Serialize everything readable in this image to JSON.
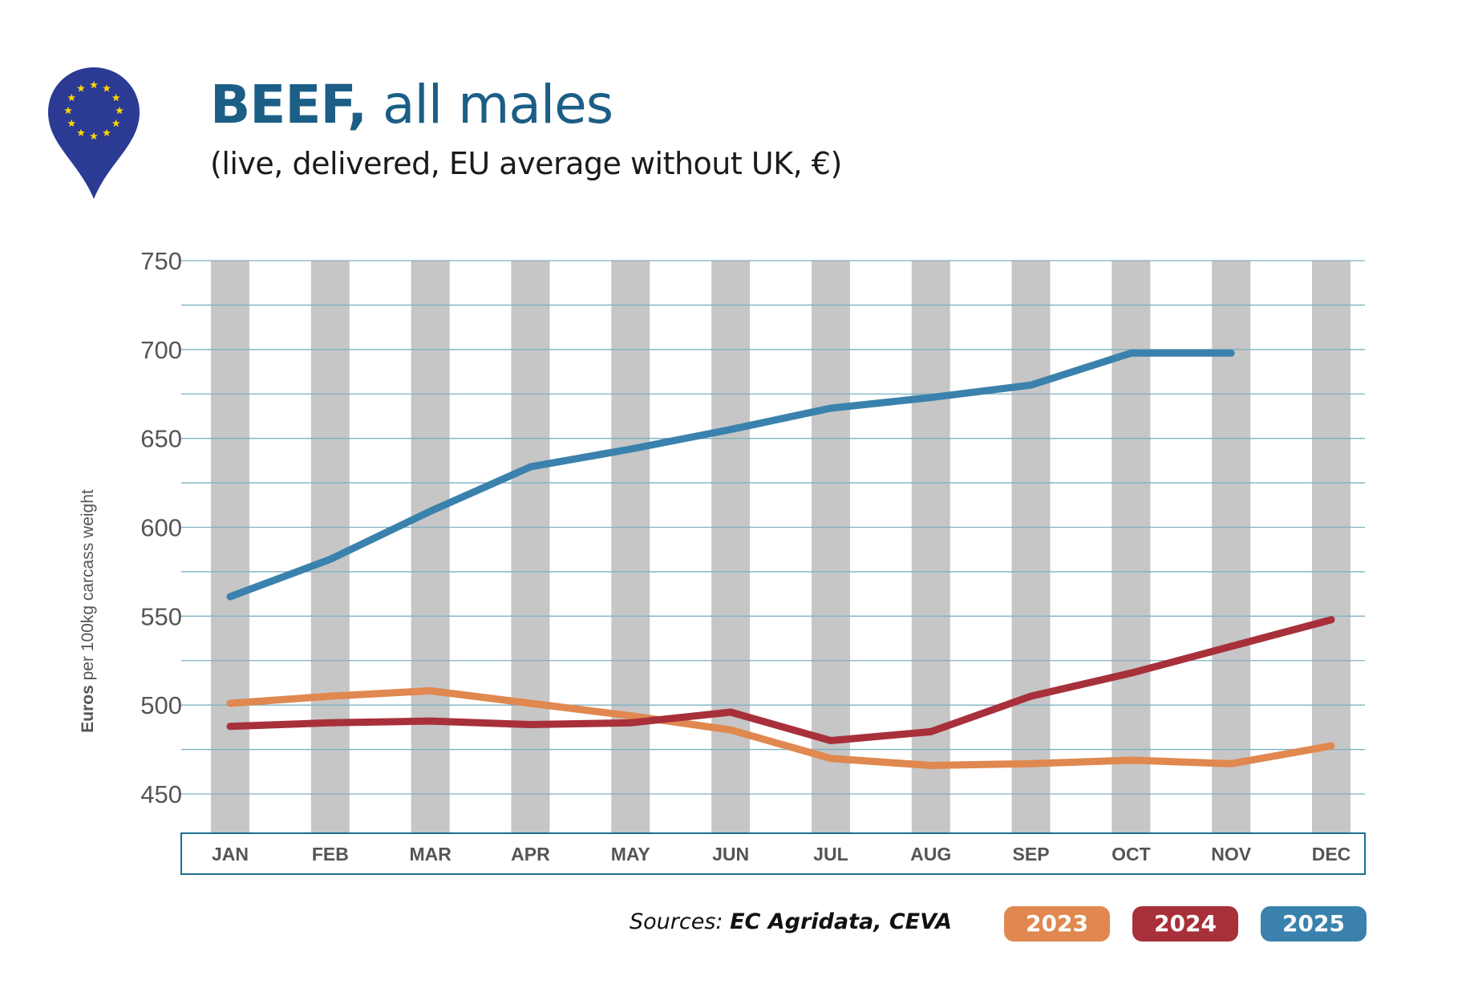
{
  "header": {
    "title_bold": "BEEF,",
    "title_rest": " all males",
    "subtitle": "(live, delivered, EU average without UK, €)"
  },
  "logo": {
    "icon": "eu-flag-map-pin-icon",
    "color": "#2b3a93",
    "star_color": "#ffd600"
  },
  "footer": {
    "sources_label": "Sources: ",
    "sources_value": "EC Agridata, CEVA"
  },
  "colors": {
    "title": "#1b5e86",
    "grid": "#7fb0c2",
    "month_band": "#c6c6c6",
    "axis_frame": "#1b6f90",
    "tick_text": "#555555"
  },
  "chart_data": {
    "type": "line",
    "title": "BEEF, all males",
    "subtitle": "(live, delivered, EU average without UK, €)",
    "ylabel_bold": "Euros",
    "ylabel_rest": " per 100kg carcass weight",
    "xlabel": "",
    "categories": [
      "JAN",
      "FEB",
      "MAR",
      "APR",
      "MAY",
      "JUN",
      "JUL",
      "AUG",
      "SEP",
      "OCT",
      "NOV",
      "DEC"
    ],
    "ylim": [
      450,
      750
    ],
    "yticks": [
      450,
      500,
      550,
      600,
      650,
      700,
      750
    ],
    "minor_gridlines": [
      475,
      525,
      575,
      625,
      675,
      725
    ],
    "grid": true,
    "legend": "bottom-right",
    "series": [
      {
        "name": "2023",
        "color": "#e0884f",
        "values": [
          501,
          505,
          508,
          501,
          494,
          486,
          470,
          466,
          467,
          469,
          467,
          477
        ]
      },
      {
        "name": "2024",
        "color": "#a8303a",
        "values": [
          488,
          490,
          491,
          489,
          490,
          496,
          480,
          485,
          505,
          518,
          533,
          548
        ]
      },
      {
        "name": "2025",
        "color": "#3a82ad",
        "values": [
          561,
          582,
          609,
          634,
          644,
          655,
          667,
          673,
          680,
          698,
          698,
          null
        ]
      }
    ]
  }
}
